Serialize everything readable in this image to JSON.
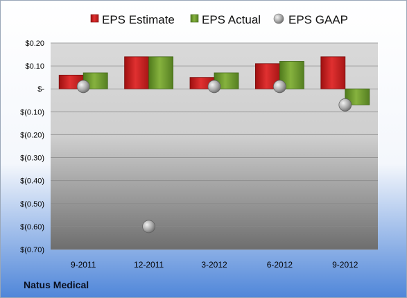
{
  "company": "Natus Medical",
  "colors": {
    "estimate": "#cc1f1f",
    "actual": "#6f9a2c",
    "gaap": "#a9a9a9",
    "frame_top": "#ffffff",
    "frame_bottom": "#4f86d9",
    "plot_light": "#d9d9d9",
    "plot_dark": "#767676"
  },
  "chart_data": {
    "type": "bar",
    "title": "",
    "xlabel": "",
    "ylabel": "",
    "categories": [
      "9-2011",
      "12-2011",
      "3-2012",
      "6-2012",
      "9-2012"
    ],
    "series": [
      {
        "name": "EPS Estimate",
        "kind": "bar",
        "color": "#cc1f1f",
        "values": [
          0.06,
          0.14,
          0.05,
          0.11,
          0.14
        ]
      },
      {
        "name": "EPS Actual",
        "kind": "bar",
        "color": "#6f9a2c",
        "values": [
          0.07,
          0.14,
          0.07,
          0.12,
          -0.07
        ]
      },
      {
        "name": "EPS GAAP",
        "kind": "marker",
        "color": "#a9a9a9",
        "values": [
          0.01,
          -0.6,
          0.01,
          0.01,
          -0.07
        ]
      }
    ],
    "ylim": [
      -0.7,
      0.2
    ],
    "yticks": [
      0.2,
      0.1,
      0.0,
      -0.1,
      -0.2,
      -0.3,
      -0.4,
      -0.5,
      -0.6,
      -0.7
    ],
    "ytick_labels": [
      "$0.20",
      "$0.10",
      "$-",
      "$(0.10)",
      "$(0.20)",
      "$(0.30)",
      "$(0.40)",
      "$(0.50)",
      "$(0.60)",
      "$(0.70)"
    ],
    "grid": true,
    "legend_position": "top"
  }
}
